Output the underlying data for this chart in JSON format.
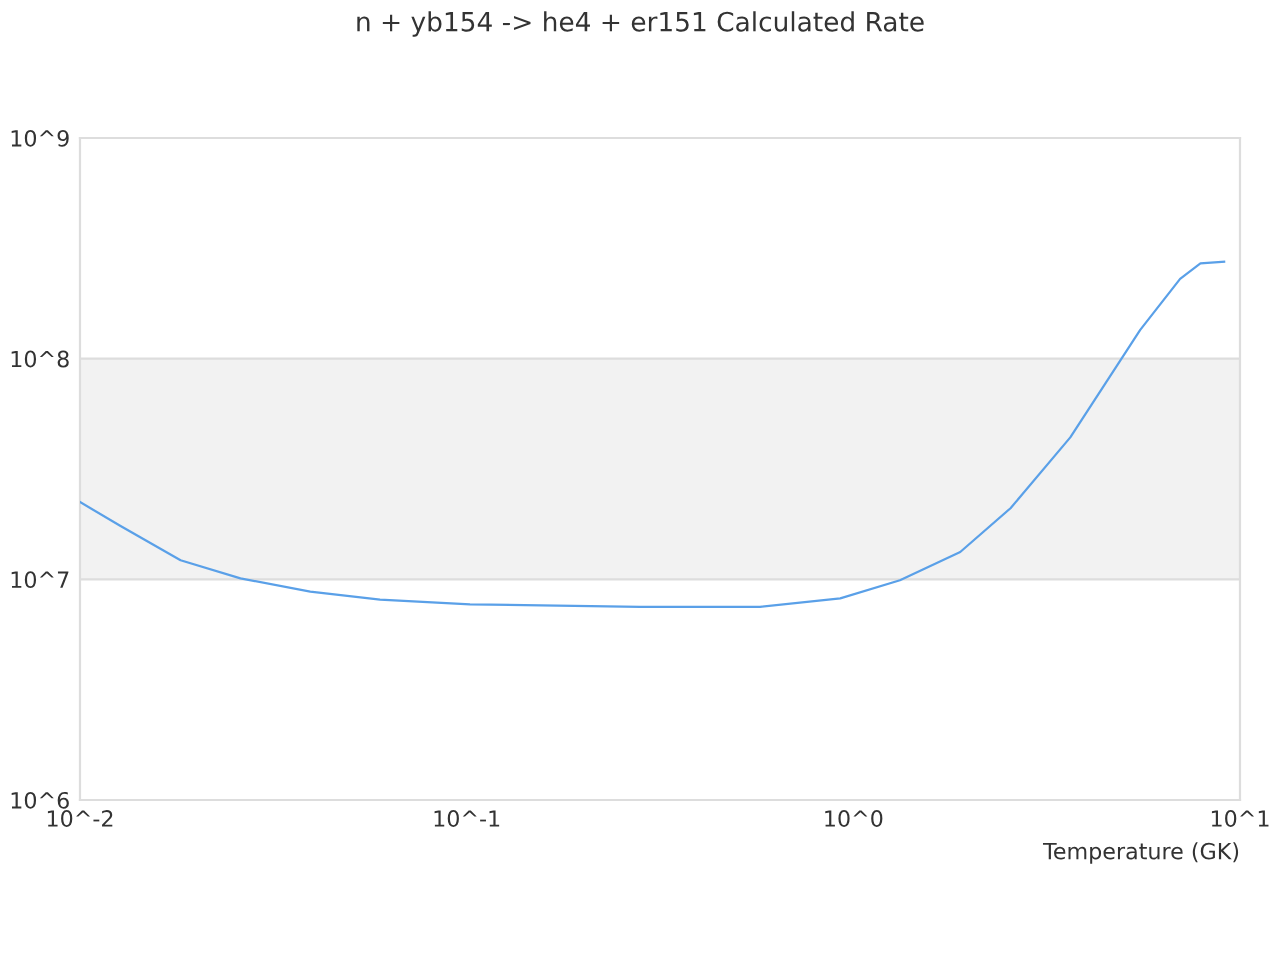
{
  "chart_data": {
    "type": "line",
    "title": "n + yb154 -> he4 + er151 Calculated Rate",
    "xlabel": "Temperature (GK)",
    "log": "xy",
    "x": [
      0.01,
      0.0127,
      0.0182,
      0.026,
      0.0394,
      0.0597,
      0.102,
      0.281,
      0.574,
      0.925,
      1.32,
      1.89,
      2.55,
      3.64,
      5.52,
      7.0,
      7.9,
      9.1
    ],
    "series": [
      {
        "color": "#5aa0e8",
        "values": [
          22400000.0,
          17500000.0,
          12200000.0,
          10100000.0,
          8800000.0,
          8100000.0,
          7700000.0,
          7500000.0,
          7500000.0,
          8200000.0,
          9900000.0,
          13300000.0,
          21000000.0,
          44000000.0,
          135000000.0,
          230000000.0,
          270000000.0,
          275000000.0
        ]
      }
    ],
    "xlim": [
      0.01,
      10
    ],
    "ylim": [
      1000000.0,
      1000000000.0
    ],
    "xticks": [
      {
        "value": 0.01,
        "label": "10^-2"
      },
      {
        "value": 0.1,
        "label": "10^-1"
      },
      {
        "value": 1,
        "label": "10^0"
      },
      {
        "value": 10,
        "label": "10^1"
      }
    ],
    "yticks": [
      {
        "value": 1000000.0,
        "label": "10^6"
      },
      {
        "value": 10000000.0,
        "label": "10^7"
      },
      {
        "value": 100000000.0,
        "label": "10^8"
      },
      {
        "value": 1000000000.0,
        "label": "10^9"
      }
    ],
    "bands": [
      {
        "axis": "y",
        "from": 10000000.0,
        "to": 100000000.0,
        "color": "#f2f2f2"
      }
    ],
    "grid": "y",
    "legend": false,
    "marker": "none",
    "line_style": "solid"
  }
}
